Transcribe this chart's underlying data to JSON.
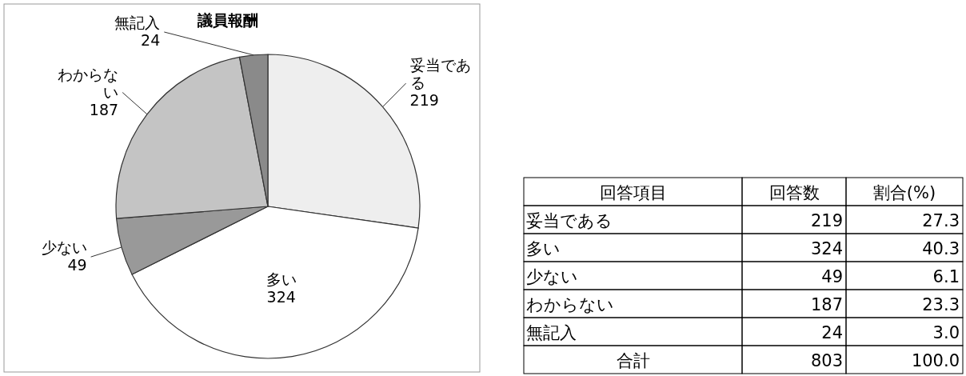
{
  "chart_data": [
    {
      "type": "pie",
      "title": "議員報酬",
      "categories": [
        "妥当である",
        "多い",
        "少ない",
        "わからない",
        "無記入"
      ],
      "values": [
        219,
        324,
        49,
        187,
        24
      ],
      "colors": [
        "#eeeeee",
        "#ffffff",
        "#999999",
        "#c4c4c4",
        "#8a8a8a"
      ],
      "data_labels": true
    },
    {
      "type": "other",
      "annotations": [
        "回答項目",
        "回答数",
        "割合(%)",
        "妥当である",
        "219",
        "27.3",
        "多い",
        "324",
        "40.3",
        "少ない",
        "49",
        "6.1",
        "わからない",
        "187",
        "23.3",
        "無記入",
        "24",
        "3.0",
        "合計",
        "803",
        "100.0"
      ]
    }
  ]
}
